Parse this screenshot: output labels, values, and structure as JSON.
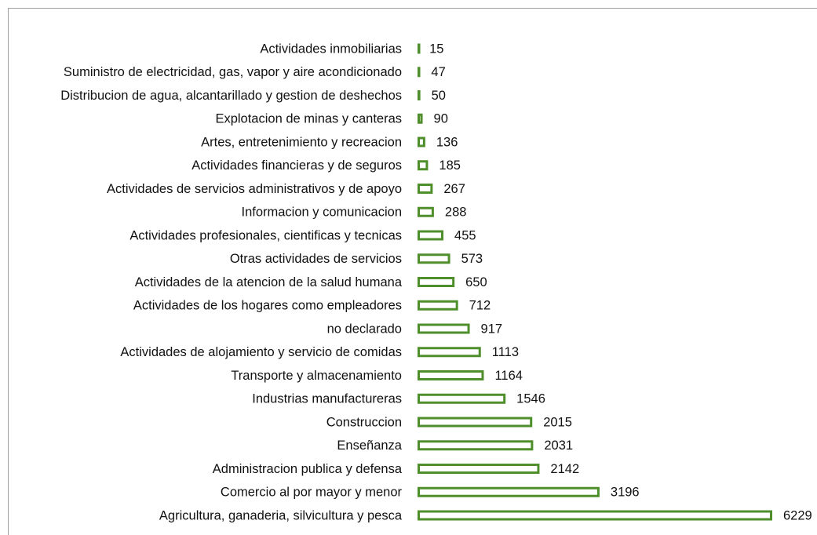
{
  "chart_data": {
    "type": "barh",
    "color": "#4e8f2b",
    "categories": [
      "Actividades inmobiliarias",
      "Suministro de electricidad, gas, vapor y aire acondicionado",
      "Distribucion de agua, alcantarillado y gestion de deshechos",
      "Explotacion de minas y canteras",
      "Artes, entretenimiento y recreacion",
      "Actividades financieras y de seguros",
      "Actividades de servicios administrativos y de apoyo",
      "Informacion y comunicacion",
      "Actividades profesionales, cientificas y tecnicas",
      "Otras actividades de servicios",
      "Actividades de la atencion de la salud humana",
      "Actividades de los hogares como empleadores",
      "no declarado",
      "Actividades de alojamiento y servicio de comidas",
      "Transporte y almacenamiento",
      "Industrias manufactureras",
      "Construccion",
      "Enseñanza",
      "Administracion publica y defensa",
      "Comercio al por mayor y menor",
      "Agricultura, ganaderia, silvicultura y pesca"
    ],
    "values": [
      15,
      47,
      50,
      90,
      136,
      185,
      267,
      288,
      455,
      573,
      650,
      712,
      917,
      1113,
      1164,
      1546,
      2015,
      2031,
      2142,
      3196,
      6229
    ],
    "xlim": [
      0,
      6229
    ]
  }
}
